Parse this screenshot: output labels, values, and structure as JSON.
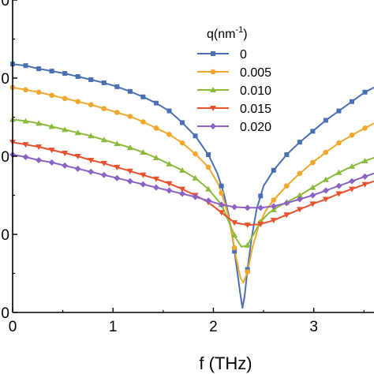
{
  "chart_data": {
    "type": "line",
    "xlabel": "f (THz)",
    "ylabel": "",
    "xlim": [
      0,
      3.6
    ],
    "ylim": [
      0,
      4
    ],
    "x_ticks": [
      "0",
      "1",
      "2",
      "3"
    ],
    "y_ticks": [
      "0",
      "0",
      "0",
      "0",
      "0"
    ],
    "legend": {
      "title_main": "q(nm",
      "title_sup": "-1",
      "title_close": ")",
      "placement": "top-right"
    },
    "marker_x": [
      0,
      0.13,
      0.26,
      0.39,
      0.52,
      0.65,
      0.78,
      0.91,
      1.04,
      1.17,
      1.3,
      1.43,
      1.56,
      1.69,
      1.82,
      1.95,
      2.08,
      2.21,
      2.34,
      2.47,
      2.6,
      2.73,
      2.86,
      2.99,
      3.12,
      3.25,
      3.38,
      3.51
    ],
    "series": [
      {
        "name": "0",
        "color": "#4a6fb3",
        "marker": "square",
        "x": [
          0,
          0.13,
          0.26,
          0.39,
          0.52,
          0.65,
          0.78,
          0.91,
          1.04,
          1.17,
          1.3,
          1.43,
          1.56,
          1.69,
          1.82,
          1.95,
          2.04,
          2.1,
          2.15,
          2.2,
          2.24,
          2.27,
          2.29,
          2.31,
          2.34,
          2.38,
          2.43,
          2.5,
          2.6,
          2.73,
          2.86,
          2.99,
          3.12,
          3.25,
          3.38,
          3.51,
          3.6
        ],
        "values": [
          3.18,
          3.16,
          3.12,
          3.09,
          3.06,
          3.02,
          2.98,
          2.94,
          2.89,
          2.83,
          2.76,
          2.68,
          2.58,
          2.43,
          2.26,
          2.02,
          1.78,
          1.54,
          1.26,
          0.88,
          0.5,
          0.22,
          0.06,
          0.2,
          0.55,
          0.95,
          1.32,
          1.62,
          1.82,
          2.02,
          2.18,
          2.32,
          2.46,
          2.58,
          2.7,
          2.82,
          2.88
        ]
      },
      {
        "name": "0.005",
        "color": "#f0a72c",
        "marker": "circle",
        "x": [
          0,
          0.13,
          0.26,
          0.39,
          0.52,
          0.65,
          0.78,
          0.91,
          1.04,
          1.17,
          1.3,
          1.43,
          1.56,
          1.69,
          1.82,
          1.95,
          2.05,
          2.12,
          2.18,
          2.23,
          2.27,
          2.3,
          2.34,
          2.39,
          2.45,
          2.52,
          2.6,
          2.73,
          2.86,
          2.99,
          3.12,
          3.25,
          3.38,
          3.51,
          3.6
        ],
        "values": [
          2.88,
          2.85,
          2.82,
          2.78,
          2.74,
          2.7,
          2.66,
          2.61,
          2.56,
          2.51,
          2.44,
          2.36,
          2.28,
          2.17,
          2.03,
          1.86,
          1.64,
          1.38,
          1.05,
          0.68,
          0.44,
          0.38,
          0.52,
          0.84,
          1.1,
          1.3,
          1.44,
          1.62,
          1.78,
          1.92,
          2.05,
          2.17,
          2.27,
          2.36,
          2.42
        ]
      },
      {
        "name": "0.010",
        "color": "#8bb93a",
        "marker": "triangle-up",
        "x": [
          0,
          0.13,
          0.26,
          0.39,
          0.52,
          0.65,
          0.78,
          0.91,
          1.04,
          1.17,
          1.3,
          1.43,
          1.56,
          1.69,
          1.82,
          1.95,
          2.08,
          2.16,
          2.22,
          2.28,
          2.34,
          2.4,
          2.47,
          2.55,
          2.64,
          2.73,
          2.86,
          2.99,
          3.12,
          3.25,
          3.38,
          3.51,
          3.6
        ],
        "values": [
          2.47,
          2.45,
          2.42,
          2.38,
          2.34,
          2.3,
          2.26,
          2.21,
          2.16,
          2.11,
          2.05,
          1.98,
          1.9,
          1.82,
          1.72,
          1.58,
          1.38,
          1.14,
          0.96,
          0.84,
          0.86,
          1.0,
          1.16,
          1.27,
          1.35,
          1.41,
          1.5,
          1.6,
          1.7,
          1.79,
          1.87,
          1.94,
          1.98
        ]
      },
      {
        "name": "0.015",
        "color": "#e8512e",
        "marker": "triangle-down",
        "x": [
          0,
          0.13,
          0.26,
          0.39,
          0.52,
          0.65,
          0.78,
          0.91,
          1.04,
          1.17,
          1.3,
          1.43,
          1.56,
          1.69,
          1.82,
          1.95,
          2.08,
          2.21,
          2.34,
          2.47,
          2.6,
          2.73,
          2.86,
          2.99,
          3.12,
          3.25,
          3.38,
          3.51,
          3.6
        ],
        "values": [
          2.18,
          2.15,
          2.12,
          2.08,
          2.04,
          2.0,
          1.95,
          1.91,
          1.86,
          1.81,
          1.76,
          1.71,
          1.65,
          1.58,
          1.5,
          1.41,
          1.28,
          1.15,
          1.12,
          1.13,
          1.18,
          1.25,
          1.32,
          1.39,
          1.45,
          1.52,
          1.58,
          1.64,
          1.68
        ]
      },
      {
        "name": "0.020",
        "color": "#8a62c2",
        "marker": "diamond",
        "x": [
          0,
          0.13,
          0.26,
          0.39,
          0.52,
          0.65,
          0.78,
          0.91,
          1.04,
          1.17,
          1.3,
          1.43,
          1.56,
          1.69,
          1.82,
          1.95,
          2.08,
          2.21,
          2.34,
          2.47,
          2.6,
          2.73,
          2.86,
          2.99,
          3.12,
          3.25,
          3.38,
          3.51,
          3.6
        ],
        "values": [
          2.02,
          1.99,
          1.95,
          1.92,
          1.88,
          1.84,
          1.8,
          1.76,
          1.72,
          1.68,
          1.64,
          1.6,
          1.56,
          1.52,
          1.48,
          1.43,
          1.38,
          1.35,
          1.34,
          1.34,
          1.36,
          1.4,
          1.45,
          1.5,
          1.56,
          1.62,
          1.68,
          1.74,
          1.78
        ]
      }
    ]
  }
}
